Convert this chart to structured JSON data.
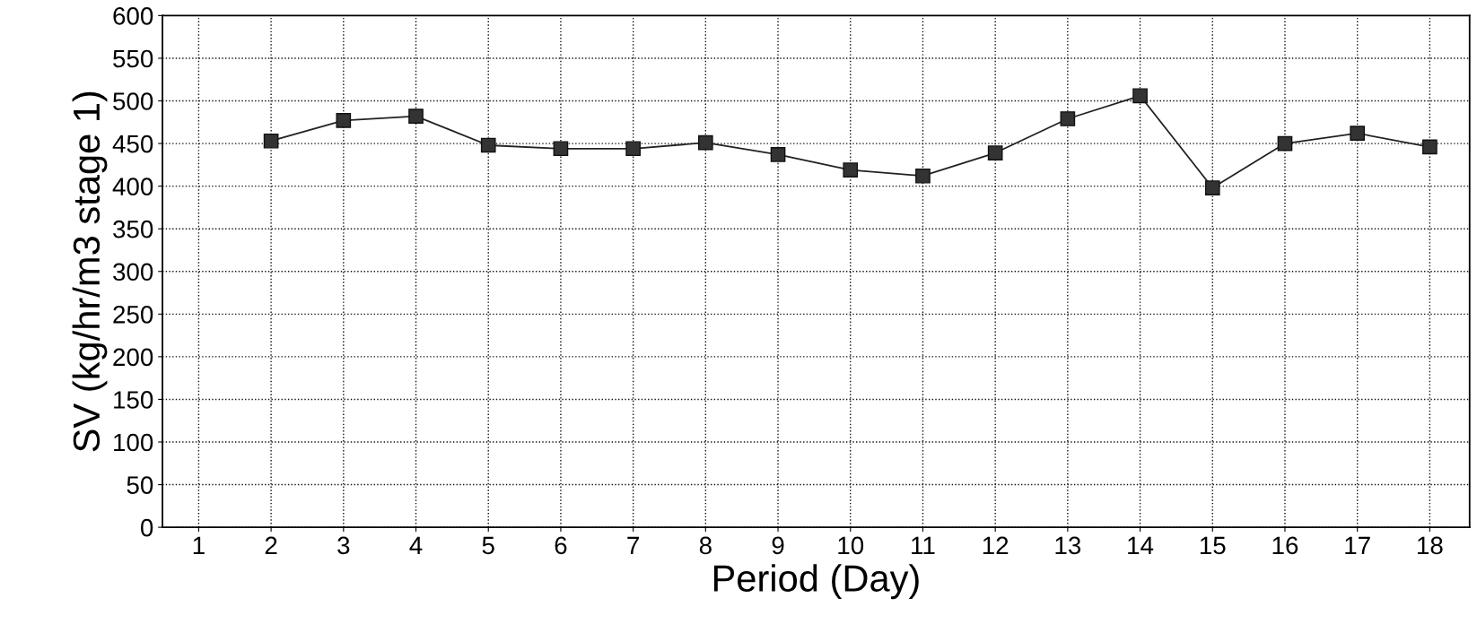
{
  "chart_data": {
    "type": "line",
    "xlabel": "Period (Day)",
    "ylabel": "SV (kg/hr/m3 stage 1)",
    "categories": [
      "1",
      "2",
      "3",
      "4",
      "5",
      "6",
      "7",
      "8",
      "9",
      "10",
      "11",
      "12",
      "13",
      "14",
      "15",
      "16",
      "17",
      "18"
    ],
    "series": [
      {
        "color": "#222222",
        "values": [
          null,
          453,
          477,
          482,
          448,
          444,
          444,
          451,
          437,
          419,
          412,
          439,
          479,
          506,
          398,
          450,
          462,
          446
        ]
      }
    ],
    "ylim": [
      0,
      600
    ],
    "yticks": [
      0,
      50,
      100,
      150,
      200,
      250,
      300,
      350,
      400,
      450,
      500,
      550,
      600
    ],
    "grid": true,
    "marker": "square",
    "line_style": "solid"
  }
}
